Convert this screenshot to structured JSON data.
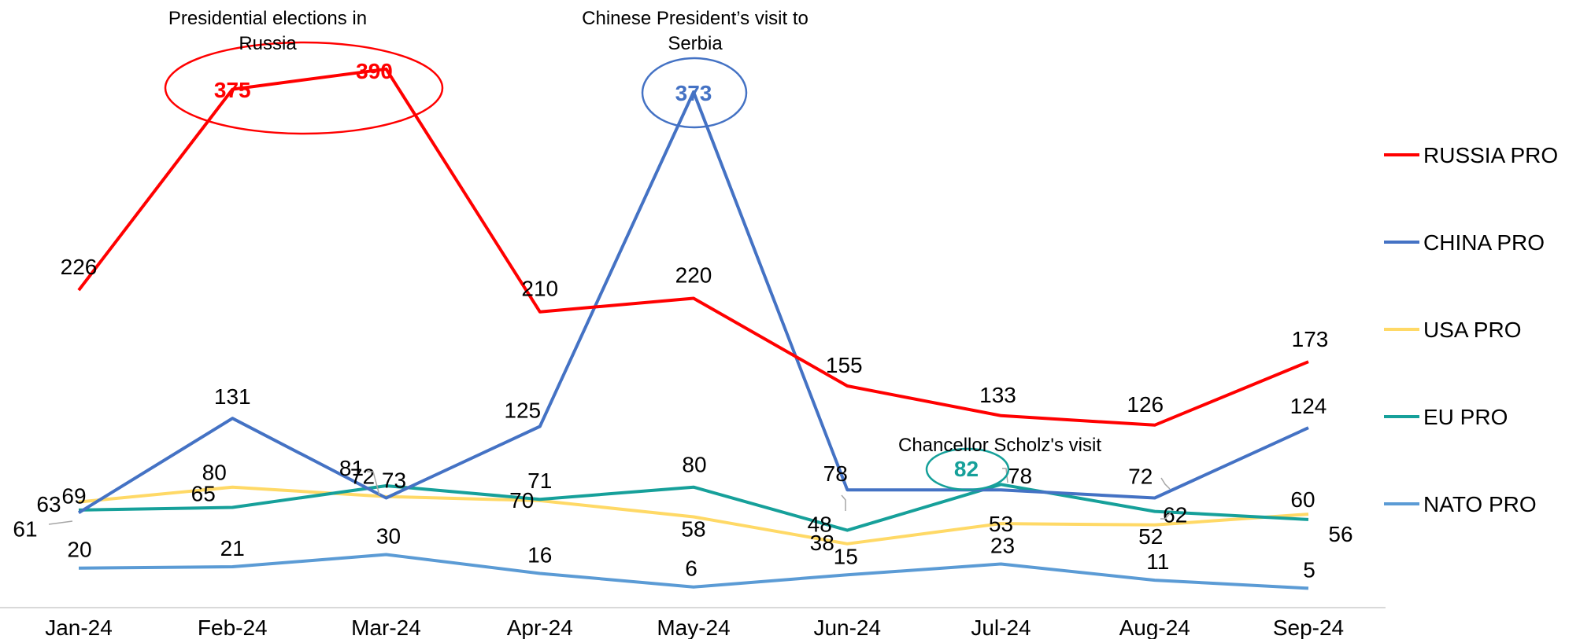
{
  "chart_data": {
    "type": "line",
    "categories": [
      "Jan-24",
      "Feb-24",
      "Mar-24",
      "Apr-24",
      "May-24",
      "Jun-24",
      "Jul-24",
      "Aug-24",
      "Sep-24"
    ],
    "ylim": [
      0,
      420
    ],
    "grid": false,
    "legend_position": "right",
    "series": [
      {
        "key": "russia",
        "name": "RUSSIA PRO",
        "color": "#ff0000",
        "values": [
          226,
          375,
          390,
          210,
          220,
          155,
          133,
          126,
          173
        ]
      },
      {
        "key": "china",
        "name": "CHINA PRO",
        "color": "#4472c4",
        "values": [
          61,
          131,
          72,
          125,
          373,
          78,
          78,
          72,
          124
        ]
      },
      {
        "key": "usa",
        "name": "USA PRO",
        "color": "#ffd966",
        "values": [
          69,
          80,
          73,
          70,
          58,
          38,
          53,
          52,
          60
        ]
      },
      {
        "key": "eu",
        "name": "EU PRO",
        "color": "#16a09a",
        "values": [
          63,
          65,
          81,
          71,
          80,
          48,
          82,
          62,
          56
        ]
      },
      {
        "key": "nato",
        "name": "NATO PRO",
        "color": "#5b9bd5",
        "values": [
          20,
          21,
          30,
          16,
          6,
          15,
          23,
          11,
          5
        ]
      }
    ],
    "annotations": [
      {
        "text": "Presidential elections in Russia",
        "series": "russia",
        "points": [
          1,
          2
        ]
      },
      {
        "text": "Chinese President’s visit to Serbia",
        "series": "china",
        "points": [
          4
        ]
      },
      {
        "text": "Chancellor Scholz's visit",
        "series": "eu",
        "points": [
          6
        ]
      }
    ]
  }
}
